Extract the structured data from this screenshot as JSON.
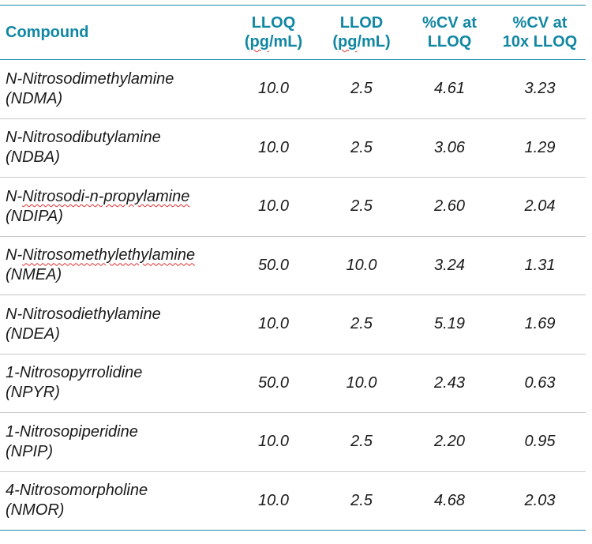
{
  "table": {
    "headers": [
      {
        "line1": "Compound",
        "line2": ""
      },
      {
        "line1": "LLOQ",
        "line2": "(pg/mL)"
      },
      {
        "line1": "LLOD",
        "line2": "(pg/mL)"
      },
      {
        "line1": "%CV at",
        "line2": "LLOQ"
      },
      {
        "line1": "%CV at",
        "line2": "10x LLOQ"
      }
    ],
    "rows": [
      {
        "name": "N-Nitrosodimethylamine",
        "abbr": "(NDMA)",
        "lloq": "10.0",
        "llod": "2.5",
        "cv_lloq": "4.61",
        "cv_10x": "3.23"
      },
      {
        "name": "N-Nitrosodibutylamine",
        "abbr": "(NDBA)",
        "lloq": "10.0",
        "llod": "2.5",
        "cv_lloq": "3.06",
        "cv_10x": "1.29"
      },
      {
        "name": "N-Nitrosodi-n-propylamine",
        "abbr": "(NDIPA)",
        "lloq": "10.0",
        "llod": "2.5",
        "cv_lloq": "2.60",
        "cv_10x": "2.04"
      },
      {
        "name": "N-Nitrosomethylethylamine",
        "abbr": "(NMEA)",
        "lloq": "50.0",
        "llod": "10.0",
        "cv_lloq": "3.24",
        "cv_10x": "1.31"
      },
      {
        "name": "N-Nitrosodiethylamine",
        "abbr": "(NDEA)",
        "lloq": "10.0",
        "llod": "2.5",
        "cv_lloq": "5.19",
        "cv_10x": "1.69"
      },
      {
        "name": "1-Nitrosopyrrolidine",
        "abbr": "(NPYR)",
        "lloq": "50.0",
        "llod": "10.0",
        "cv_lloq": "2.43",
        "cv_10x": "0.63"
      },
      {
        "name": "1-Nitrosopiperidine",
        "abbr": "(NPIP)",
        "lloq": "10.0",
        "llod": "2.5",
        "cv_lloq": "2.20",
        "cv_10x": "0.95"
      },
      {
        "name": "4-Nitrosomorpholine",
        "abbr": "(NMOR)",
        "lloq": "10.0",
        "llod": "2.5",
        "cv_lloq": "4.68",
        "cv_10x": "2.03"
      }
    ]
  }
}
